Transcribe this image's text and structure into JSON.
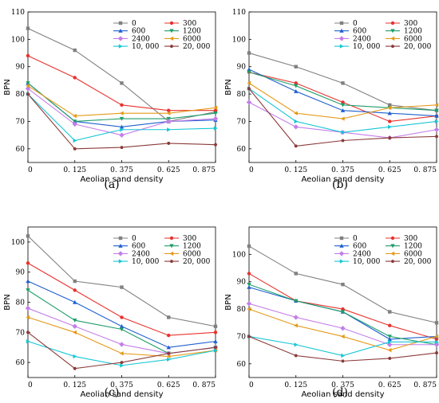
{
  "chart_data": [
    {
      "type": "line",
      "panel_label": "(a)",
      "xlabel": "Aeolian sand density",
      "ylabel": "BPN",
      "x": [
        "0",
        "0. 125",
        "0. 375",
        "0. 625",
        "0. 875"
      ],
      "ylim": [
        55,
        110
      ],
      "yticks": [
        60,
        70,
        80,
        90,
        100,
        110
      ],
      "grid": false,
      "legend_position": "top-right",
      "series": [
        {
          "name": "0",
          "color": "#808080",
          "marker": "square",
          "values": [
            104,
            96,
            84,
            70,
            73.5
          ]
        },
        {
          "name": "300",
          "color": "#e8322d",
          "marker": "circle",
          "values": [
            94,
            86,
            76,
            74,
            74
          ]
        },
        {
          "name": "600",
          "color": "#1f5fcf",
          "marker": "triangle-up",
          "values": [
            84,
            70,
            68,
            70,
            70.5
          ]
        },
        {
          "name": "1200",
          "color": "#1f9e6a",
          "marker": "triangle-down",
          "values": [
            84,
            70,
            71,
            71,
            73
          ]
        },
        {
          "name": "2400",
          "color": "#c47ee8",
          "marker": "diamond",
          "values": [
            82,
            69,
            65,
            70,
            71
          ]
        },
        {
          "name": "6000",
          "color": "#e59a1a",
          "marker": "triangle-left",
          "values": [
            83,
            72,
            73,
            73,
            75
          ]
        },
        {
          "name": "10, 000",
          "color": "#17c6d6",
          "marker": "triangle-right",
          "values": [
            80,
            63,
            67,
            67,
            67.5
          ]
        },
        {
          "name": "20, 000",
          "color": "#8b3a3a",
          "marker": "hexagon",
          "values": [
            80,
            60,
            60.5,
            62,
            61.5
          ]
        }
      ]
    },
    {
      "type": "line",
      "panel_label": "(b)",
      "xlabel": "Aeolian sand density",
      "ylabel": "BPN",
      "x": [
        "0",
        "0. 125",
        "0. 375",
        "0. 625",
        "0. 875"
      ],
      "ylim": [
        55,
        110
      ],
      "yticks": [
        60,
        70,
        80,
        90,
        100,
        110
      ],
      "grid": false,
      "legend_position": "top-right",
      "series": [
        {
          "name": "0",
          "color": "#808080",
          "marker": "square",
          "values": [
            95,
            90,
            84,
            76,
            74
          ]
        },
        {
          "name": "300",
          "color": "#e8322d",
          "marker": "circle",
          "values": [
            88,
            84,
            77,
            70,
            72
          ]
        },
        {
          "name": "600",
          "color": "#1f5fcf",
          "marker": "triangle-up",
          "values": [
            89,
            81,
            74,
            73,
            72
          ]
        },
        {
          "name": "1200",
          "color": "#1f9e6a",
          "marker": "triangle-down",
          "values": [
            88,
            83,
            76,
            75,
            74
          ]
        },
        {
          "name": "2400",
          "color": "#c47ee8",
          "marker": "diamond",
          "values": [
            77,
            68,
            66,
            64,
            67
          ]
        },
        {
          "name": "6000",
          "color": "#e59a1a",
          "marker": "triangle-left",
          "values": [
            84,
            73,
            71,
            75,
            76
          ]
        },
        {
          "name": "10, 000",
          "color": "#17c6d6",
          "marker": "triangle-right",
          "values": [
            82,
            70,
            66,
            68,
            70
          ]
        },
        {
          "name": "20, 000",
          "color": "#8b3a3a",
          "marker": "hexagon",
          "values": [
            82,
            61,
            63,
            64,
            64.5
          ]
        }
      ]
    },
    {
      "type": "line",
      "panel_label": "(c)",
      "xlabel": "Aeolian sand density",
      "ylabel": "BPN",
      "x": [
        "0",
        "0. 125",
        "0. 375",
        "0. 625",
        "0. 875"
      ],
      "ylim": [
        55,
        105
      ],
      "yticks": [
        60,
        70,
        80,
        90,
        100
      ],
      "grid": false,
      "legend_position": "top-right",
      "series": [
        {
          "name": "0",
          "color": "#808080",
          "marker": "square",
          "values": [
            102,
            87,
            85,
            75,
            72
          ]
        },
        {
          "name": "300",
          "color": "#e8322d",
          "marker": "circle",
          "values": [
            93,
            84,
            75,
            69,
            70
          ]
        },
        {
          "name": "600",
          "color": "#1f5fcf",
          "marker": "triangle-up",
          "values": [
            87,
            80,
            72,
            65,
            67
          ]
        },
        {
          "name": "1200",
          "color": "#1f9e6a",
          "marker": "triangle-down",
          "values": [
            84,
            74,
            71,
            63,
            65
          ]
        },
        {
          "name": "2400",
          "color": "#c47ee8",
          "marker": "diamond",
          "values": [
            78,
            72,
            66,
            63,
            65
          ]
        },
        {
          "name": "6000",
          "color": "#e59a1a",
          "marker": "triangle-left",
          "values": [
            75,
            70,
            63,
            62,
            64
          ]
        },
        {
          "name": "10, 000",
          "color": "#17c6d6",
          "marker": "triangle-right",
          "values": [
            67,
            62,
            59,
            61,
            64
          ]
        },
        {
          "name": "20, 000",
          "color": "#8b3a3a",
          "marker": "hexagon",
          "values": [
            70,
            58,
            60,
            63,
            65
          ]
        }
      ]
    },
    {
      "type": "line",
      "panel_label": "(d)",
      "xlabel": "Aeolian sand density",
      "ylabel": "BPN",
      "x": [
        "0",
        "0. 125",
        "0. 375",
        "0. 625",
        "0. 875"
      ],
      "ylim": [
        55,
        110
      ],
      "yticks": [
        60,
        70,
        80,
        90,
        100
      ],
      "grid": false,
      "legend_position": "top-right",
      "series": [
        {
          "name": "0",
          "color": "#808080",
          "marker": "square",
          "values": [
            103,
            93,
            89,
            79,
            75
          ]
        },
        {
          "name": "300",
          "color": "#e8322d",
          "marker": "circle",
          "values": [
            93,
            83,
            80,
            74,
            69
          ]
        },
        {
          "name": "600",
          "color": "#1f5fcf",
          "marker": "triangle-up",
          "values": [
            88,
            83,
            79,
            69,
            70
          ]
        },
        {
          "name": "1200",
          "color": "#1f9e6a",
          "marker": "triangle-down",
          "values": [
            89,
            83,
            79,
            70,
            67
          ]
        },
        {
          "name": "2400",
          "color": "#c47ee8",
          "marker": "diamond",
          "values": [
            82,
            77,
            73,
            67,
            67
          ]
        },
        {
          "name": "6000",
          "color": "#e59a1a",
          "marker": "triangle-left",
          "values": [
            80,
            74,
            70,
            65,
            70
          ]
        },
        {
          "name": "10, 000",
          "color": "#17c6d6",
          "marker": "triangle-right",
          "values": [
            70,
            67,
            63,
            68,
            68
          ]
        },
        {
          "name": "20, 000",
          "color": "#8b3a3a",
          "marker": "hexagon",
          "values": [
            70,
            63,
            61,
            62,
            64
          ]
        }
      ]
    }
  ]
}
